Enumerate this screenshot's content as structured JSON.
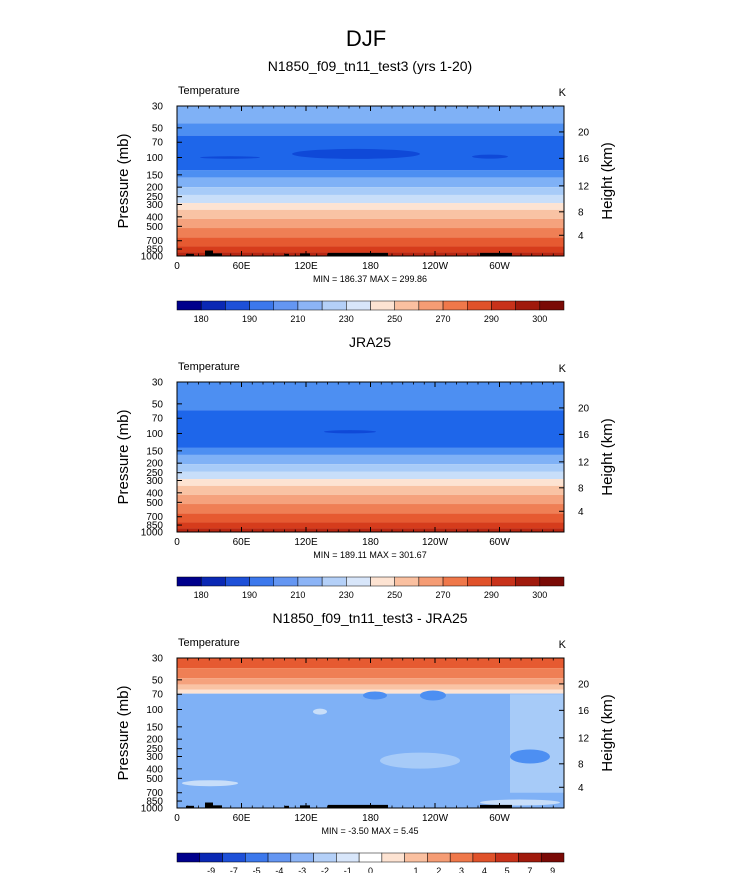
{
  "figure_title": "DJF",
  "chart_data": [
    {
      "type": "heatmap",
      "title": "N1850_f09_tn11_test3 (yrs 1-20)",
      "left_label": "Temperature",
      "units": "K",
      "ylabel": "Pressure (mb)",
      "y2label": "Height (km)",
      "x_ticks": [
        "0",
        "60E",
        "120E",
        "180",
        "120W",
        "60W"
      ],
      "y_ticks": [
        "30",
        "50",
        "70",
        "100",
        "150",
        "200",
        "250",
        "300",
        "400",
        "500",
        "700",
        "850",
        "1000"
      ],
      "y2_ticks": [
        "20",
        "16",
        "12",
        "8",
        "4"
      ],
      "stats": "MIN = 186.37  MAX = 299.86",
      "colorbar_labels": [
        "180",
        "190",
        "210",
        "230",
        "250",
        "270",
        "290",
        "300"
      ],
      "bands": [
        {
          "p_top": 30,
          "p_bot": 45,
          "color": "#7fb1f6"
        },
        {
          "p_top": 45,
          "p_bot": 60,
          "color": "#4d8ff2"
        },
        {
          "p_top": 60,
          "p_bot": 135,
          "color": "#1e66ea"
        },
        {
          "p_top": 135,
          "p_bot": 160,
          "color": "#4d8ff2"
        },
        {
          "p_top": 160,
          "p_bot": 200,
          "color": "#7fb1f6"
        },
        {
          "p_top": 200,
          "p_bot": 240,
          "color": "#a7cbf8"
        },
        {
          "p_top": 240,
          "p_bot": 290,
          "color": "#c8def9"
        },
        {
          "p_top": 290,
          "p_bot": 340,
          "color": "#fde3d2"
        },
        {
          "p_top": 340,
          "p_bot": 420,
          "color": "#f9c3a4"
        },
        {
          "p_top": 420,
          "p_bot": 520,
          "color": "#f5a27d"
        },
        {
          "p_top": 520,
          "p_bot": 650,
          "color": "#ef7f55"
        },
        {
          "p_top": 650,
          "p_bot": 800,
          "color": "#e65a31"
        },
        {
          "p_top": 800,
          "p_bot": 920,
          "color": "#d63c1c"
        },
        {
          "p_top": 920,
          "p_bot": 1000,
          "color": "#b82612"
        }
      ]
    },
    {
      "type": "heatmap",
      "title": "JRA25",
      "left_label": "Temperature",
      "units": "K",
      "ylabel": "Pressure (mb)",
      "y2label": "Height (km)",
      "x_ticks": [
        "0",
        "60E",
        "120E",
        "180",
        "120W",
        "60W"
      ],
      "y_ticks": [
        "30",
        "50",
        "70",
        "100",
        "150",
        "200",
        "250",
        "300",
        "400",
        "500",
        "700",
        "850",
        "1000"
      ],
      "y2_ticks": [
        "20",
        "16",
        "12",
        "8",
        "4"
      ],
      "stats": "MIN = 189.11  MAX = 301.67",
      "colorbar_labels": [
        "180",
        "190",
        "210",
        "230",
        "250",
        "270",
        "290",
        "300"
      ],
      "bands": [
        {
          "p_top": 30,
          "p_bot": 58,
          "color": "#4d8ff2"
        },
        {
          "p_top": 58,
          "p_bot": 140,
          "color": "#1e66ea"
        },
        {
          "p_top": 140,
          "p_bot": 165,
          "color": "#4d8ff2"
        },
        {
          "p_top": 165,
          "p_bot": 205,
          "color": "#7fb1f6"
        },
        {
          "p_top": 205,
          "p_bot": 245,
          "color": "#a7cbf8"
        },
        {
          "p_top": 245,
          "p_bot": 290,
          "color": "#c8def9"
        },
        {
          "p_top": 290,
          "p_bot": 340,
          "color": "#fde3d2"
        },
        {
          "p_top": 340,
          "p_bot": 420,
          "color": "#f9c3a4"
        },
        {
          "p_top": 420,
          "p_bot": 520,
          "color": "#f5a27d"
        },
        {
          "p_top": 520,
          "p_bot": 650,
          "color": "#ef7f55"
        },
        {
          "p_top": 650,
          "p_bot": 800,
          "color": "#e65a31"
        },
        {
          "p_top": 800,
          "p_bot": 920,
          "color": "#d63c1c"
        },
        {
          "p_top": 920,
          "p_bot": 1000,
          "color": "#b82612"
        }
      ]
    },
    {
      "type": "heatmap",
      "title": "N1850_f09_tn11_test3 - JRA25",
      "left_label": "Temperature",
      "units": "K",
      "ylabel": "Pressure (mb)",
      "y2label": "Height (km)",
      "x_ticks": [
        "0",
        "60E",
        "120E",
        "180",
        "120W",
        "60W"
      ],
      "y_ticks": [
        "30",
        "50",
        "70",
        "100",
        "150",
        "200",
        "250",
        "300",
        "400",
        "500",
        "700",
        "850",
        "1000"
      ],
      "y2_ticks": [
        "20",
        "16",
        "12",
        "8",
        "4"
      ],
      "stats": "MIN = -3.50  MAX =  5.45",
      "colorbar_labels": [
        "-9",
        "-7",
        "-5",
        "-4",
        "-3",
        "-2",
        "-1",
        "0",
        "1",
        "2",
        "3",
        "4",
        "5",
        "7",
        "9"
      ],
      "bands": [
        {
          "p_top": 30,
          "p_bot": 38,
          "color": "#e65a31"
        },
        {
          "p_top": 38,
          "p_bot": 48,
          "color": "#ef7f55"
        },
        {
          "p_top": 48,
          "p_bot": 56,
          "color": "#f5a27d"
        },
        {
          "p_top": 56,
          "p_bot": 63,
          "color": "#f9c3a4"
        },
        {
          "p_top": 63,
          "p_bot": 69,
          "color": "#fde3d2"
        },
        {
          "p_top": 69,
          "p_bot": 1000,
          "color": "#7fb1f6"
        }
      ]
    }
  ],
  "colorbar_colors": {
    "top": [
      "#00008c",
      "#0a28b4",
      "#1e50d8",
      "#3c78ec",
      "#6496f2",
      "#8cb4f6",
      "#b4d0f8",
      "#d8e6fa",
      "#fde3d2",
      "#fac0a0",
      "#f59c74",
      "#ef784a",
      "#e0522a",
      "#c8321a",
      "#a01a0c",
      "#7a0a06"
    ],
    "diff": [
      "#00008c",
      "#0a28b4",
      "#1e50d8",
      "#3c78ec",
      "#6496f2",
      "#8cb4f6",
      "#b4d0f8",
      "#d8e6fa",
      "#ffffff",
      "#fde3d2",
      "#fac0a0",
      "#f59c74",
      "#ef784a",
      "#e0522a",
      "#c8321a",
      "#a01a0c",
      "#7a0a06"
    ]
  }
}
